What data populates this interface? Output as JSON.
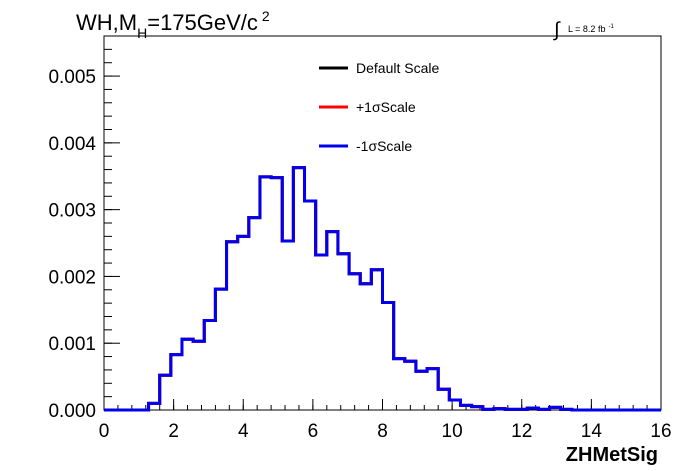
{
  "chart_data": {
    "type": "step",
    "title_main": "WH,M",
    "title_sub": "H",
    "title_rest": "=175GeV/c",
    "title_sup": "2",
    "lumi_label": "L = 8.2 fb",
    "lumi_sup": "-1",
    "xlabel": "ZHMetSig",
    "ylabel": "",
    "xlim": [
      0,
      16
    ],
    "ylim": [
      0,
      0.0056
    ],
    "x_ticks": [
      "0",
      "2",
      "4",
      "6",
      "8",
      "10",
      "12",
      "14",
      "16"
    ],
    "y_ticks": [
      "0.000",
      "0.001",
      "0.002",
      "0.003",
      "0.004",
      "0.005"
    ],
    "y_tick_values": [
      0,
      0.001,
      0.002,
      0.003,
      0.004,
      0.005
    ],
    "legend_position": "top-center",
    "bin_width": 0.32,
    "bin_edges_start": 0,
    "series": [
      {
        "name": "Default Scale",
        "color": "#000000",
        "values": [
          0,
          0,
          0,
          0,
          0.0001,
          0.00052,
          0.00083,
          0.00106,
          0.00103,
          0.00134,
          0.00181,
          0.00252,
          0.0026,
          0.00288,
          0.00349,
          0.00348,
          0.00253,
          0.00363,
          0.00313,
          0.00232,
          0.00267,
          0.00234,
          0.00204,
          0.00189,
          0.0021,
          0.00161,
          0.00077,
          0.00073,
          0.00058,
          0.00062,
          0.00031,
          0.00015,
          7e-05,
          5e-05,
          1e-05,
          2e-05,
          1e-05,
          1e-05,
          3e-05,
          1e-05,
          4e-05,
          1e-05,
          0,
          0,
          0,
          0,
          0,
          0,
          0,
          0
        ]
      },
      {
        "name": "+1σScale",
        "color": "#ff0000",
        "values": [
          0,
          0,
          0,
          0,
          0.0001,
          0.00052,
          0.00083,
          0.00106,
          0.00103,
          0.00134,
          0.00181,
          0.00252,
          0.0026,
          0.00288,
          0.00349,
          0.00348,
          0.00253,
          0.00363,
          0.00313,
          0.00232,
          0.00267,
          0.00234,
          0.00204,
          0.00189,
          0.0021,
          0.00161,
          0.00077,
          0.00073,
          0.00058,
          0.00062,
          0.00031,
          0.00015,
          7e-05,
          5e-05,
          1e-05,
          2e-05,
          1e-05,
          1e-05,
          3e-05,
          1e-05,
          4e-05,
          1e-05,
          0,
          0,
          0,
          0,
          0,
          0,
          0,
          0
        ]
      },
      {
        "name": "-1σScale",
        "color": "#0000ee",
        "values": [
          0,
          0,
          0,
          0,
          0.0001,
          0.00052,
          0.00083,
          0.00106,
          0.00103,
          0.00134,
          0.00181,
          0.00252,
          0.0026,
          0.00288,
          0.00349,
          0.00348,
          0.00253,
          0.00363,
          0.00313,
          0.00232,
          0.00267,
          0.00234,
          0.00204,
          0.00189,
          0.0021,
          0.00161,
          0.00077,
          0.00073,
          0.00058,
          0.00062,
          0.00031,
          0.00015,
          7e-05,
          5e-05,
          1e-05,
          2e-05,
          1e-05,
          1e-05,
          3e-05,
          1e-05,
          4e-05,
          1e-05,
          0,
          0,
          0,
          0,
          0,
          0,
          0,
          0
        ]
      }
    ]
  }
}
